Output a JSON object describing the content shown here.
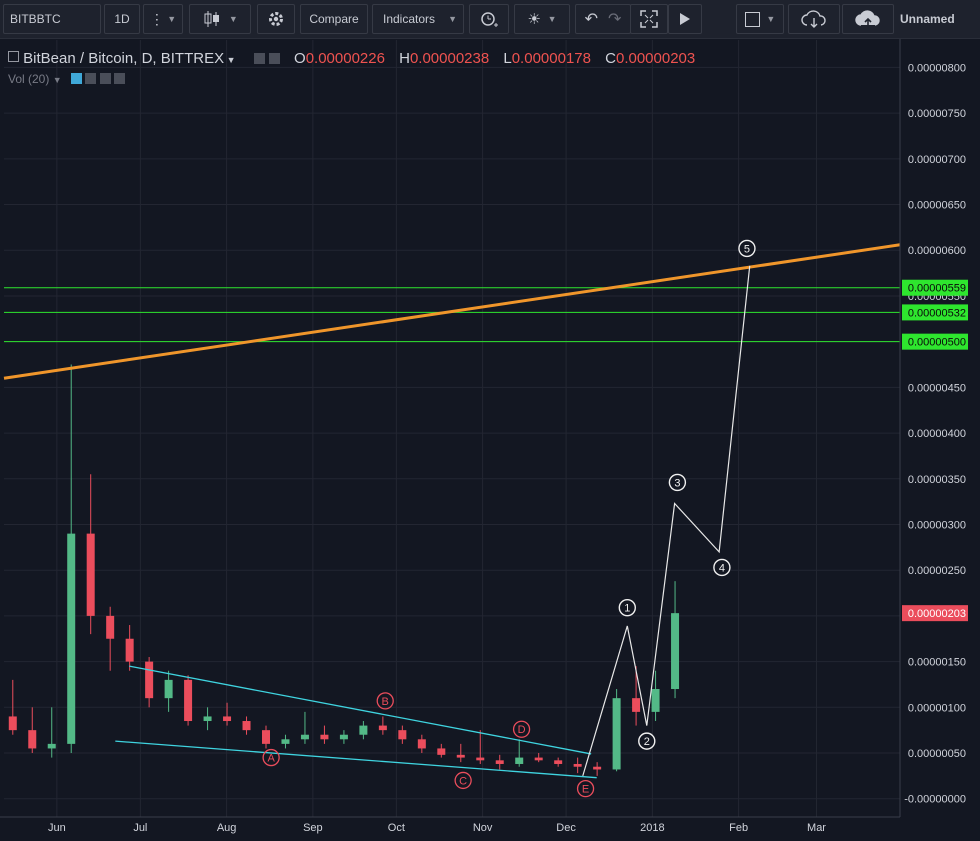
{
  "toolbar": {
    "symbol": "BITBBTC",
    "interval": "1D",
    "compare_label": "Compare",
    "indicators_label": "Indicators",
    "layout_name": "Unnamed"
  },
  "legend": {
    "title": "BitBean / Bitcoin, D, BITTREX",
    "o_label": "O",
    "o_value": "0.00000226",
    "h_label": "H",
    "h_value": "0.00000238",
    "l_label": "L",
    "l_value": "0.00000178",
    "c_label": "C",
    "c_value": "0.00000203",
    "volume_label": "Vol (20)"
  },
  "colors": {
    "up": "#53b987",
    "down": "#eb4d5c",
    "background": "#131722",
    "trendline_orange": "#f0962b",
    "channel_cyan": "#3fd4e0",
    "level_green": "#2ee62e",
    "last_price_badge": "#eb4d5c"
  },
  "chart_data": {
    "type": "candlestick",
    "price_axis": {
      "ticks": [
        "0.00000800",
        "0.00000750",
        "0.00000700",
        "0.00000650",
        "0.00000600",
        "0.00000550",
        "0.00000500",
        "0.00000450",
        "0.00000400",
        "0.00000350",
        "0.00000300",
        "0.00000250",
        "0.00000200",
        "0.00000150",
        "0.00000100",
        "0.00000050",
        "-0.00000000"
      ],
      "range": [
        -2e-07,
        8.3e-06
      ]
    },
    "time_axis": {
      "labels": [
        "Jun",
        "Jul",
        "Aug",
        "Sep",
        "Oct",
        "Nov",
        "Dec",
        "2018",
        "Feb",
        "Mar"
      ],
      "label_dates": [
        "2017-06-01",
        "2017-07-01",
        "2017-08-01",
        "2017-09-01",
        "2017-10-01",
        "2017-11-01",
        "2017-12-01",
        "2018-01-01",
        "2018-02-01",
        "2018-03-01"
      ],
      "range": [
        "2017-05-13",
        "2018-03-31"
      ]
    },
    "last_price": "0.00000203",
    "price_levels": [
      {
        "value": 5.59e-06,
        "label": "0.00000559"
      },
      {
        "value": 5.32e-06,
        "label": "0.00000532"
      },
      {
        "value": 5e-06,
        "label": "0.00000500"
      }
    ],
    "trendlines": [
      {
        "name": "long_trend",
        "points": [
          [
            "2017-05-13",
            4.6e-06
          ],
          [
            "2018-03-31",
            6.06e-06
          ]
        ]
      },
      {
        "name": "wedge_top",
        "points": [
          [
            "2017-06-27",
            1.45e-06
          ],
          [
            "2017-12-10",
            4.9e-07
          ]
        ]
      },
      {
        "name": "wedge_bottom",
        "points": [
          [
            "2017-06-22",
            6.3e-07
          ],
          [
            "2017-12-12",
            2.3e-07
          ]
        ]
      }
    ],
    "wave_labels_abcde": [
      {
        "label": "A",
        "date": "2017-08-17",
        "price": 4.5e-07
      },
      {
        "label": "B",
        "date": "2017-09-27",
        "price": 1.07e-06
      },
      {
        "label": "C",
        "date": "2017-10-25",
        "price": 2e-07
      },
      {
        "label": "D",
        "date": "2017-11-15",
        "price": 7.6e-07
      },
      {
        "label": "E",
        "date": "2017-12-08",
        "price": 1.1e-07
      }
    ],
    "impulse_path": [
      {
        "label": "",
        "date": "2017-12-07",
        "price": 2.5e-07
      },
      {
        "label": "1",
        "date": "2017-12-23",
        "price": 1.89e-06
      },
      {
        "label": "2",
        "date": "2017-12-30",
        "price": 8e-07
      },
      {
        "label": "3",
        "date": "2018-01-09",
        "price": 3.23e-06
      },
      {
        "label": "4",
        "date": "2018-01-25",
        "price": 2.7e-06
      },
      {
        "label": "5",
        "date": "2018-02-05",
        "price": 5.83e-06
      }
    ],
    "circle_label_positions": {
      "1": [
        "2017-12-23",
        2.09e-06
      ],
      "2": [
        "2017-12-30",
        6.3e-07
      ],
      "3": [
        "2018-01-10",
        3.46e-06
      ],
      "4": [
        "2018-01-26",
        2.53e-06
      ],
      "5": [
        "2018-02-04",
        6.02e-06
      ]
    },
    "candles_weekly_summary": [
      {
        "date": "2017-05-14",
        "open": 9e-07,
        "high": 1.3e-06,
        "low": 7e-07,
        "close": 7.5e-07
      },
      {
        "date": "2017-05-21",
        "open": 7.5e-07,
        "high": 1e-06,
        "low": 5e-07,
        "close": 5.5e-07
      },
      {
        "date": "2017-05-28",
        "open": 5.5e-07,
        "high": 1e-06,
        "low": 4.5e-07,
        "close": 6e-07
      },
      {
        "date": "2017-06-04",
        "open": 6e-07,
        "high": 4.75e-06,
        "low": 5e-07,
        "close": 2.9e-06
      },
      {
        "date": "2017-06-11",
        "open": 2.9e-06,
        "high": 3.55e-06,
        "low": 1.8e-06,
        "close": 2e-06
      },
      {
        "date": "2017-06-18",
        "open": 2e-06,
        "high": 2.1e-06,
        "low": 1.4e-06,
        "close": 1.75e-06
      },
      {
        "date": "2017-06-25",
        "open": 1.75e-06,
        "high": 1.9e-06,
        "low": 1.4e-06,
        "close": 1.5e-06
      },
      {
        "date": "2017-07-02",
        "open": 1.5e-06,
        "high": 1.55e-06,
        "low": 1e-06,
        "close": 1.1e-06
      },
      {
        "date": "2017-07-09",
        "open": 1.1e-06,
        "high": 1.4e-06,
        "low": 9.5e-07,
        "close": 1.3e-06
      },
      {
        "date": "2017-07-16",
        "open": 1.3e-06,
        "high": 1.35e-06,
        "low": 8e-07,
        "close": 8.5e-07
      },
      {
        "date": "2017-07-23",
        "open": 8.5e-07,
        "high": 1e-06,
        "low": 7.5e-07,
        "close": 9e-07
      },
      {
        "date": "2017-07-30",
        "open": 9e-07,
        "high": 1.05e-06,
        "low": 8e-07,
        "close": 8.5e-07
      },
      {
        "date": "2017-08-06",
        "open": 8.5e-07,
        "high": 9e-07,
        "low": 7e-07,
        "close": 7.5e-07
      },
      {
        "date": "2017-08-13",
        "open": 7.5e-07,
        "high": 8e-07,
        "low": 5.5e-07,
        "close": 6e-07
      },
      {
        "date": "2017-08-20",
        "open": 6e-07,
        "high": 7e-07,
        "low": 5.5e-07,
        "close": 6.5e-07
      },
      {
        "date": "2017-08-27",
        "open": 6.5e-07,
        "high": 9.5e-07,
        "low": 6e-07,
        "close": 7e-07
      },
      {
        "date": "2017-09-03",
        "open": 7e-07,
        "high": 8e-07,
        "low": 6e-07,
        "close": 6.5e-07
      },
      {
        "date": "2017-09-10",
        "open": 6.5e-07,
        "high": 7.5e-07,
        "low": 6e-07,
        "close": 7e-07
      },
      {
        "date": "2017-09-17",
        "open": 7e-07,
        "high": 8.5e-07,
        "low": 6.5e-07,
        "close": 8e-07
      },
      {
        "date": "2017-09-24",
        "open": 8e-07,
        "high": 9e-07,
        "low": 7e-07,
        "close": 7.5e-07
      },
      {
        "date": "2017-10-01",
        "open": 7.5e-07,
        "high": 8e-07,
        "low": 6e-07,
        "close": 6.5e-07
      },
      {
        "date": "2017-10-08",
        "open": 6.5e-07,
        "high": 7e-07,
        "low": 5e-07,
        "close": 5.5e-07
      },
      {
        "date": "2017-10-15",
        "open": 5.5e-07,
        "high": 6e-07,
        "low": 4.5e-07,
        "close": 4.8e-07
      },
      {
        "date": "2017-10-22",
        "open": 4.8e-07,
        "high": 6e-07,
        "low": 4e-07,
        "close": 4.5e-07
      },
      {
        "date": "2017-10-29",
        "open": 4.5e-07,
        "high": 7.5e-07,
        "low": 3.8e-07,
        "close": 4.2e-07
      },
      {
        "date": "2017-11-05",
        "open": 4.2e-07,
        "high": 4.8e-07,
        "low": 3.2e-07,
        "close": 3.8e-07
      },
      {
        "date": "2017-11-12",
        "open": 3.8e-07,
        "high": 6.5e-07,
        "low": 3.5e-07,
        "close": 4.5e-07
      },
      {
        "date": "2017-11-19",
        "open": 4.5e-07,
        "high": 5e-07,
        "low": 4e-07,
        "close": 4.2e-07
      },
      {
        "date": "2017-11-26",
        "open": 4.2e-07,
        "high": 4.5e-07,
        "low": 3.5e-07,
        "close": 3.8e-07
      },
      {
        "date": "2017-12-03",
        "open": 3.8e-07,
        "high": 4.5e-07,
        "low": 2.8e-07,
        "close": 3.5e-07
      },
      {
        "date": "2017-12-10",
        "open": 3.5e-07,
        "high": 4e-07,
        "low": 2.5e-07,
        "close": 3.2e-07
      },
      {
        "date": "2017-12-17",
        "open": 3.2e-07,
        "high": 1.2e-06,
        "low": 3e-07,
        "close": 1.1e-06
      },
      {
        "date": "2017-12-24",
        "open": 1.1e-06,
        "high": 1.45e-06,
        "low": 8e-07,
        "close": 9.5e-07
      },
      {
        "date": "2017-12-31",
        "open": 9.5e-07,
        "high": 1.4e-06,
        "low": 8.5e-07,
        "close": 1.2e-06
      },
      {
        "date": "2018-01-07",
        "open": 1.2e-06,
        "high": 2.38e-06,
        "low": 1.1e-06,
        "close": 2.03e-06
      }
    ]
  }
}
